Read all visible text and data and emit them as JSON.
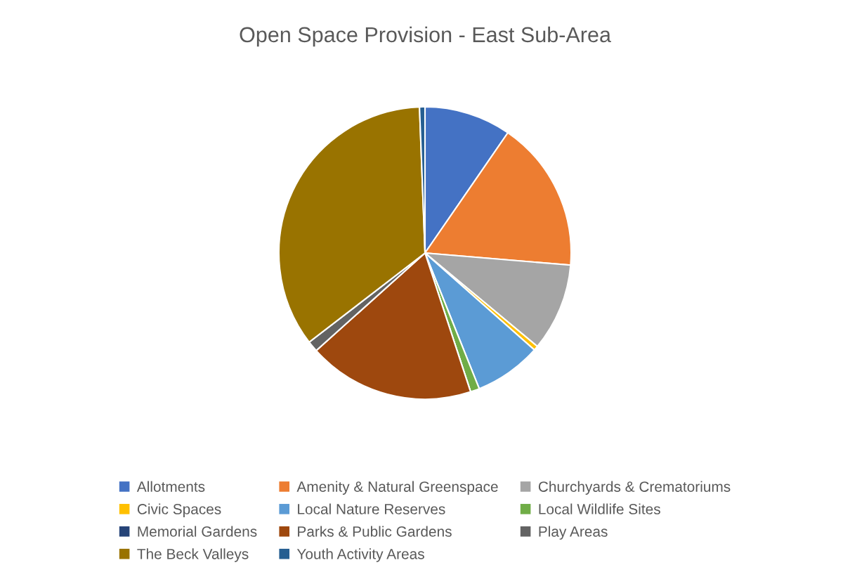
{
  "chart_data": {
    "type": "pie",
    "title": "Open Space Provision - East Sub-Area",
    "categories": [
      "Allotments",
      "Amenity & Natural Greenspace",
      "Churchyards & Crematoriums",
      "Civic Spaces",
      "Local Nature Reserves",
      "Local Wildlife Sites",
      "Memorial Gardens",
      "Parks & Public Gardens",
      "Play Areas",
      "The Beck Valleys",
      "Youth Activity Areas"
    ],
    "values": [
      9.6,
      16.7,
      9.7,
      0.5,
      7.4,
      1.0,
      null,
      18.4,
      1.2,
      34.8,
      0.6
    ],
    "colors": [
      "#4472c4",
      "#ed7d31",
      "#a5a5a5",
      "#ffc000",
      "#5b9bd5",
      "#70ad47",
      "#264478",
      "#9e480e",
      "#636363",
      "#997300",
      "#255e91"
    ],
    "legend": "bottom"
  }
}
